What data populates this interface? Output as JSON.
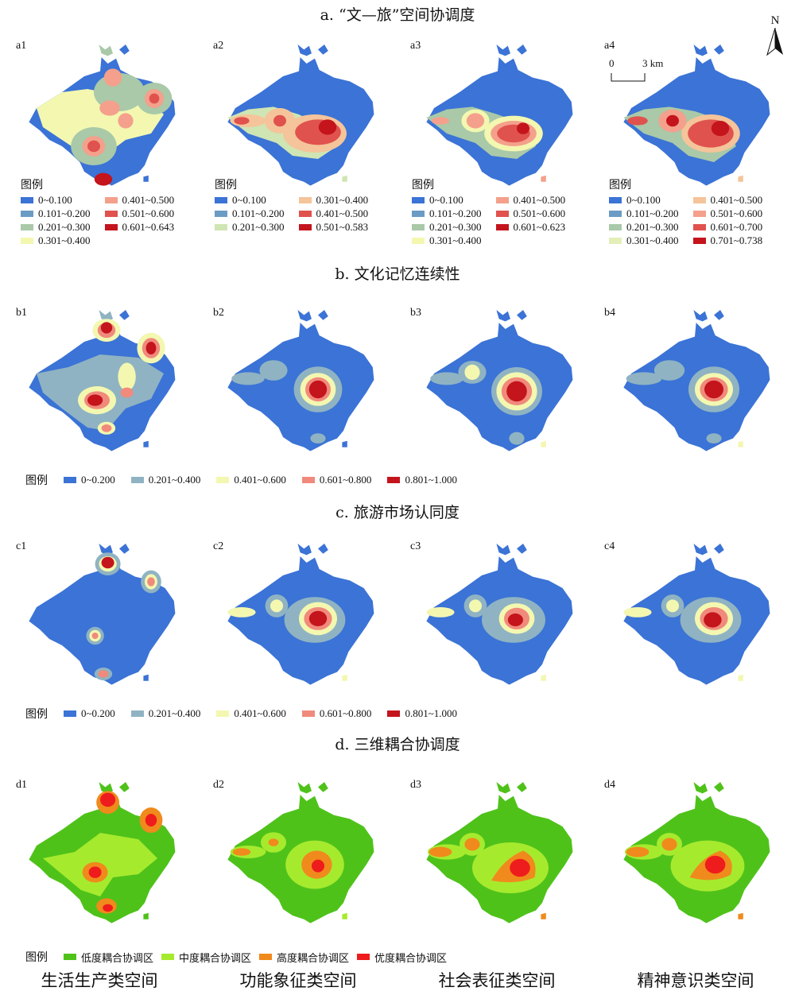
{
  "sections": {
    "a": {
      "title": "a. “文—旅”空间协调度"
    },
    "b": {
      "title": "b. 文化记忆连续性"
    },
    "c": {
      "title": "c. 旅游市场认同度"
    },
    "d": {
      "title": "d. 三维耦合协调度"
    }
  },
  "panel_labels": {
    "a": [
      "a1",
      "a2",
      "a3",
      "a4"
    ],
    "b": [
      "b1",
      "b2",
      "b3",
      "b4"
    ],
    "c": [
      "c1",
      "c2",
      "c3",
      "c4"
    ],
    "d": [
      "d1",
      "d2",
      "d3",
      "d4"
    ]
  },
  "legend_title": "图例",
  "legends": {
    "a1": [
      {
        "label": "0~0.100",
        "color": "#3b73d6"
      },
      {
        "label": "0.401~0.500",
        "color": "#f4a08c"
      },
      {
        "label": "0.101~0.200",
        "color": "#6b9cc4"
      },
      {
        "label": "0.501~0.600",
        "color": "#e0524e"
      },
      {
        "label": "0.201~0.300",
        "color": "#a9c9a8"
      },
      {
        "label": "0.601~0.643",
        "color": "#c4141c"
      },
      {
        "label": "0.301~0.400",
        "color": "#f3f7b0"
      }
    ],
    "a2": [
      {
        "label": "0~0.100",
        "color": "#3b73d6"
      },
      {
        "label": "0.301~0.400",
        "color": "#f5c49a"
      },
      {
        "label": "0.101~0.200",
        "color": "#6b9cc4"
      },
      {
        "label": "0.401~0.500",
        "color": "#e0524e"
      },
      {
        "label": "0.201~0.300",
        "color": "#cfe5b4"
      },
      {
        "label": "0.501~0.583",
        "color": "#c4141c"
      }
    ],
    "a3": [
      {
        "label": "0~0.100",
        "color": "#3b73d6"
      },
      {
        "label": "0.401~0.500",
        "color": "#f4a08c"
      },
      {
        "label": "0.101~0.200",
        "color": "#6b9cc4"
      },
      {
        "label": "0.501~0.600",
        "color": "#e0524e"
      },
      {
        "label": "0.201~0.300",
        "color": "#a9c9a8"
      },
      {
        "label": "0.601~0.623",
        "color": "#c4141c"
      },
      {
        "label": "0.301~0.400",
        "color": "#f3f7b0"
      }
    ],
    "a4": [
      {
        "label": "0~0.100",
        "color": "#3b73d6"
      },
      {
        "label": "0.401~0.500",
        "color": "#f5c49a"
      },
      {
        "label": "0.101~0.200",
        "color": "#6b9cc4"
      },
      {
        "label": "0.501~0.600",
        "color": "#f4a08c"
      },
      {
        "label": "0.201~0.300",
        "color": "#a9c9a8"
      },
      {
        "label": "0.601~0.700",
        "color": "#e0524e"
      },
      {
        "label": "0.301~0.400",
        "color": "#e2efb8"
      },
      {
        "label": "0.701~0.738",
        "color": "#c4141c"
      }
    ],
    "b": [
      {
        "label": "0~0.200",
        "color": "#3b73d6"
      },
      {
        "label": "0.201~0.400",
        "color": "#8fb3c2"
      },
      {
        "label": "0.401~0.600",
        "color": "#f3f7b0"
      },
      {
        "label": "0.601~0.800",
        "color": "#f08a7c"
      },
      {
        "label": "0.801~1.000",
        "color": "#c4141c"
      }
    ],
    "c": [
      {
        "label": "0~0.200",
        "color": "#3b73d6"
      },
      {
        "label": "0.201~0.400",
        "color": "#8fb3c2"
      },
      {
        "label": "0.401~0.600",
        "color": "#f3f7b0"
      },
      {
        "label": "0.601~0.800",
        "color": "#f08a7c"
      },
      {
        "label": "0.801~1.000",
        "color": "#c4141c"
      }
    ],
    "d": [
      {
        "label": "低度耦合协调区",
        "color": "#4fc21a"
      },
      {
        "label": "中度耦合协调区",
        "color": "#a6ea2e"
      },
      {
        "label": "高度耦合协调区",
        "color": "#f08a1c"
      },
      {
        "label": "优度耦合协调区",
        "color": "#ee1c1c"
      }
    ]
  },
  "scale_bar": {
    "start": "0",
    "end": "3 km"
  },
  "north_label": "N",
  "column_captions": [
    "生活生产类空间",
    "功能象征类空间",
    "社会表征类空间",
    "精神意识类空间"
  ]
}
